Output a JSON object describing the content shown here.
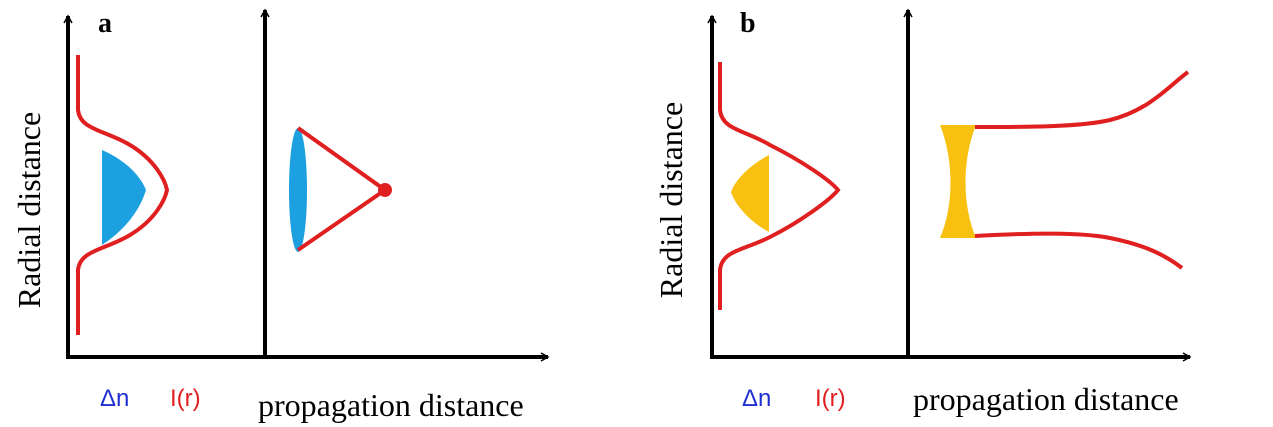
{
  "panels": [
    {
      "label": "a",
      "y_axis_label": "Radial distance",
      "delta_n": "Δn",
      "intensity": "I(r)",
      "x_axis_label": "propagation distance"
    },
    {
      "label": "b",
      "y_axis_label": "Radial distance",
      "delta_n": "Δn",
      "intensity": "I(r)",
      "x_axis_label": "propagation distance"
    }
  ]
}
